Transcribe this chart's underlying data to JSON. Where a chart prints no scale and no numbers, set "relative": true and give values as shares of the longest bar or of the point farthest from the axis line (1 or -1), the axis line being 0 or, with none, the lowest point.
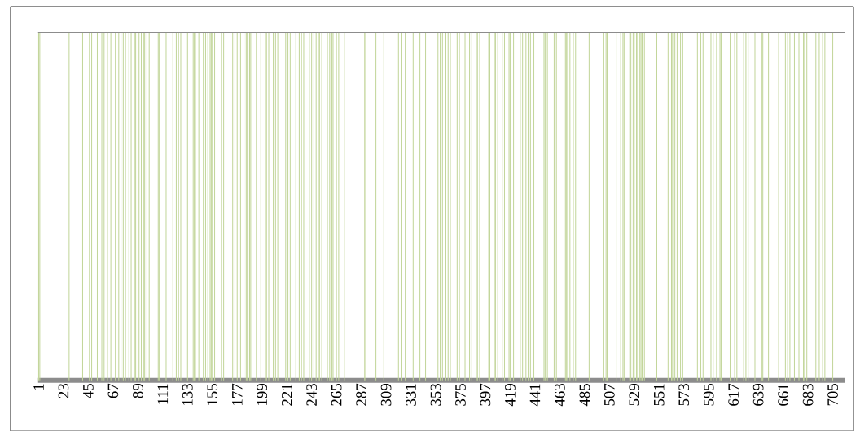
{
  "chart_data": {
    "type": "bar",
    "relative": true,
    "color": "#c3d69b",
    "ref_lines": [
      {
        "axis": "y",
        "value": 1,
        "color": "#8c8c8c"
      }
    ],
    "categories": [
      "1",
      null,
      null,
      null,
      null,
      null,
      null,
      null,
      null,
      null,
      null,
      null,
      null,
      null,
      null,
      null,
      null,
      null,
      null,
      null,
      null,
      null,
      "23",
      null,
      null,
      null,
      null,
      null,
      null,
      null,
      null,
      null,
      null,
      null,
      null,
      null,
      null,
      null,
      null,
      null,
      null,
      null,
      null,
      null,
      "45",
      null,
      null,
      null,
      null,
      null,
      null,
      null,
      null,
      null,
      null,
      null,
      null,
      null,
      null,
      null,
      null,
      null,
      null,
      null,
      null,
      null,
      "67",
      null,
      null,
      null,
      null,
      null,
      null,
      null,
      null,
      null,
      null,
      null,
      null,
      null,
      null,
      null,
      null,
      null,
      null,
      null,
      null,
      null,
      "89",
      null,
      null,
      null,
      null,
      null,
      null,
      null,
      null,
      null,
      null,
      null,
      null,
      null,
      null,
      null,
      null,
      null,
      null,
      null,
      null,
      null,
      "111",
      null,
      null,
      null,
      null,
      null,
      null,
      null,
      null,
      null,
      null,
      null,
      null,
      null,
      null,
      null,
      null,
      null,
      null,
      null,
      null,
      null,
      "133",
      null,
      null,
      null,
      null,
      null,
      null,
      null,
      null,
      null,
      null,
      null,
      null,
      null,
      null,
      null,
      null,
      null,
      null,
      null,
      null,
      null,
      "155",
      null,
      null,
      null,
      null,
      null,
      null,
      null,
      null,
      null,
      null,
      null,
      null,
      null,
      null,
      null,
      null,
      null,
      null,
      null,
      null,
      null,
      "177",
      null,
      null,
      null,
      null,
      null,
      null,
      null,
      null,
      null,
      null,
      null,
      null,
      null,
      null,
      null,
      null,
      null,
      null,
      null,
      null,
      null,
      "199",
      null,
      null,
      null,
      null,
      null,
      null,
      null,
      null,
      null,
      null,
      null,
      null,
      null,
      null,
      null,
      null,
      null,
      null,
      null,
      null,
      null,
      "221",
      null,
      null,
      null,
      null,
      null,
      null,
      null,
      null,
      null,
      null,
      null,
      null,
      null,
      null,
      null,
      null,
      null,
      null,
      null,
      null,
      null,
      "243",
      null,
      null,
      null,
      null,
      null,
      null,
      null,
      null,
      null,
      null,
      null,
      null,
      null,
      null,
      null,
      null,
      null,
      null,
      null,
      null,
      null,
      "265",
      null,
      null,
      null,
      null,
      null,
      null,
      null,
      null,
      null,
      null,
      null,
      null,
      null,
      null,
      null,
      null,
      null,
      null,
      null,
      null,
      null,
      "287",
      null,
      null,
      null,
      null,
      null,
      null,
      null,
      null,
      null,
      null,
      null,
      null,
      null,
      null,
      null,
      null,
      null,
      null,
      null,
      null,
      null,
      "309",
      null,
      null,
      null,
      null,
      null,
      null,
      null,
      null,
      null,
      null,
      null,
      null,
      null,
      null,
      null,
      null,
      null,
      null,
      null,
      null,
      null,
      "331",
      null,
      null,
      null,
      null,
      null,
      null,
      null,
      null,
      null,
      null,
      null,
      null,
      null,
      null,
      null,
      null,
      null,
      null,
      null,
      null,
      null,
      "353",
      null,
      null,
      null,
      null,
      null,
      null,
      null,
      null,
      null,
      null,
      null,
      null,
      null,
      null,
      null,
      null,
      null,
      null,
      null,
      null,
      null,
      "375",
      null,
      null,
      null,
      null,
      null,
      null,
      null,
      null,
      null,
      null,
      null,
      null,
      null,
      null,
      null,
      null,
      null,
      null,
      null,
      null,
      null,
      "397",
      null,
      null,
      null,
      null,
      null,
      null,
      null,
      null,
      null,
      null,
      null,
      null,
      null,
      null,
      null,
      null,
      null,
      null,
      null,
      null,
      null,
      "419",
      null,
      null,
      null,
      null,
      null,
      null,
      null,
      null,
      null,
      null,
      null,
      null,
      null,
      null,
      null,
      null,
      null,
      null,
      null,
      null,
      null,
      "441",
      null,
      null,
      null,
      null,
      null,
      null,
      null,
      null,
      null,
      null,
      null,
      null,
      null,
      null,
      null,
      null,
      null,
      null,
      null,
      null,
      null,
      "463",
      null,
      null,
      null,
      null,
      null,
      null,
      null,
      null,
      null,
      null,
      null,
      null,
      null,
      null,
      null,
      null,
      null,
      null,
      null,
      null,
      null,
      "485",
      null,
      null,
      null,
      null,
      null,
      null,
      null,
      null,
      null,
      null,
      null,
      null,
      null,
      null,
      null,
      null,
      null,
      null,
      null,
      null,
      null,
      "507",
      null,
      null,
      null,
      null,
      null,
      null,
      null,
      null,
      null,
      null,
      null,
      null,
      null,
      null,
      null,
      null,
      null,
      null,
      null,
      null,
      null,
      "529",
      null,
      null,
      null,
      null,
      null,
      null,
      null,
      null,
      null,
      null,
      null,
      null,
      null,
      null,
      null,
      null,
      null,
      null,
      null,
      null,
      null,
      "551",
      null,
      null,
      null,
      null,
      null,
      null,
      null,
      null,
      null,
      null,
      null,
      null,
      null,
      null,
      null,
      null,
      null,
      null,
      null,
      null,
      null,
      "573",
      null,
      null,
      null,
      null,
      null,
      null,
      null,
      null,
      null,
      null,
      null,
      null,
      null,
      null,
      null,
      null,
      null,
      null,
      null,
      null,
      null,
      "595",
      null,
      null,
      null,
      null,
      null,
      null,
      null,
      null,
      null,
      null,
      null,
      null,
      null,
      null,
      null,
      null,
      null,
      null,
      null,
      null,
      null,
      "617",
      null,
      null,
      null,
      null,
      null,
      null,
      null,
      null,
      null,
      null,
      null,
      null,
      null,
      null,
      null,
      null,
      null,
      null,
      null,
      null,
      null,
      "639",
      null,
      null,
      null,
      null,
      null,
      null,
      null,
      null,
      null,
      null,
      null,
      null,
      null,
      null,
      null,
      null,
      null,
      null,
      null,
      null,
      null,
      "661",
      null,
      null,
      null,
      null,
      null,
      null,
      null,
      null,
      null,
      null,
      null,
      null,
      null,
      null,
      null,
      null,
      null,
      null,
      null,
      null,
      null,
      "683",
      null,
      null,
      null,
      null,
      null,
      null,
      null,
      null,
      null,
      null,
      null,
      null,
      null,
      null,
      null,
      null,
      null,
      null,
      null,
      null,
      null,
      "705",
      null,
      null,
      null,
      null,
      null,
      null,
      null,
      null,
      null,
      null
    ],
    "values": [
      1,
      1,
      0,
      0,
      0,
      0,
      0,
      0,
      0,
      0,
      0,
      0,
      0,
      0,
      0,
      0,
      0,
      0,
      0,
      0,
      0,
      0,
      0,
      0,
      0,
      0,
      0,
      1,
      0,
      0,
      0,
      0,
      0,
      0,
      0,
      0,
      0,
      0,
      0,
      1,
      0,
      0,
      0,
      0,
      0,
      1,
      0,
      1,
      0,
      0,
      0,
      0,
      1,
      0,
      0,
      0,
      1,
      0,
      1,
      0,
      0,
      1,
      0,
      0,
      1,
      0,
      0,
      0,
      1,
      0,
      0,
      1,
      0,
      1,
      0,
      1,
      0,
      1,
      0,
      0,
      1,
      0,
      1,
      0,
      0,
      1,
      1,
      0,
      0,
      1,
      0,
      1,
      0,
      1,
      1,
      0,
      1,
      0,
      1,
      0,
      0,
      0,
      0,
      0,
      0,
      0,
      1,
      1,
      0,
      0,
      0,
      0,
      0,
      1,
      0,
      0,
      0,
      0,
      0,
      1,
      0,
      0,
      1,
      0,
      1,
      0,
      1,
      0,
      0,
      0,
      0,
      0,
      1,
      0,
      0,
      0,
      0,
      1,
      1,
      1,
      0,
      0,
      1,
      0,
      0,
      0,
      1,
      0,
      1,
      0,
      1,
      0,
      1,
      1,
      1,
      0,
      1,
      0,
      0,
      0,
      0,
      0,
      1,
      0,
      1,
      0,
      0,
      0,
      0,
      0,
      0,
      0,
      1,
      0,
      1,
      0,
      1,
      0,
      0,
      1,
      0,
      0,
      1,
      0,
      1,
      1,
      0,
      1,
      1,
      0,
      0,
      0,
      0,
      1,
      0,
      0,
      0,
      1,
      0,
      0,
      0,
      1,
      1,
      0,
      1,
      0,
      0,
      0,
      1,
      0,
      1,
      0,
      1,
      0,
      0,
      0,
      0,
      0,
      0,
      1,
      0,
      1,
      0,
      1,
      0,
      0,
      0,
      0,
      1,
      0,
      0,
      1,
      0,
      1,
      0,
      1,
      0,
      0,
      0,
      0,
      1,
      0,
      1,
      0,
      1,
      0,
      1,
      0,
      1,
      1,
      0,
      1,
      0,
      0,
      0,
      0,
      1,
      0,
      1,
      0,
      1,
      1,
      0,
      0,
      1,
      0,
      1,
      0,
      0,
      0,
      0,
      1,
      0,
      0,
      0,
      0,
      0,
      0,
      0,
      0,
      0,
      0,
      0,
      0,
      0,
      0,
      0,
      0,
      0,
      1,
      1,
      0,
      0,
      0,
      0,
      0,
      0,
      0,
      0,
      1,
      0,
      0,
      0,
      0,
      0,
      0,
      1,
      0,
      0,
      0,
      0,
      0,
      0,
      0,
      0,
      0,
      0,
      0,
      0,
      1,
      0,
      0,
      1,
      0,
      0,
      1,
      0,
      0,
      0,
      0,
      0,
      0,
      1,
      0,
      0,
      0,
      0,
      0,
      1,
      0,
      0,
      0,
      0,
      1,
      0,
      0,
      0,
      0,
      0,
      0,
      0,
      0,
      0,
      0,
      1,
      0,
      1,
      0,
      1,
      0,
      0,
      1,
      0,
      1,
      0,
      1,
      0,
      0,
      0,
      0,
      0,
      1,
      0,
      1,
      0,
      0,
      0,
      0,
      1,
      0,
      0,
      0,
      1,
      0,
      1,
      0,
      0,
      0,
      1,
      1,
      0,
      1,
      0,
      0,
      0,
      0,
      0,
      0,
      0,
      1,
      1,
      0,
      0,
      0,
      1,
      1,
      0,
      1,
      0,
      0,
      0,
      1,
      0,
      1,
      0,
      0,
      0,
      1,
      1,
      0,
      0,
      1,
      0,
      0,
      0,
      0,
      0,
      1,
      0,
      1,
      0,
      0,
      1,
      0,
      1,
      0,
      1,
      0,
      0,
      1,
      0,
      0,
      0,
      0,
      0,
      0,
      0,
      0,
      1,
      1,
      0,
      1,
      0,
      0,
      0,
      0,
      0,
      1,
      0,
      1,
      0,
      0,
      0,
      0,
      0,
      0,
      0,
      1,
      1,
      1,
      0,
      1,
      0,
      0,
      1,
      0,
      1,
      0,
      0,
      0,
      0,
      0,
      0,
      0,
      0,
      0,
      0,
      0,
      1,
      0,
      0,
      0,
      0,
      0,
      0,
      0,
      0,
      0,
      0,
      0,
      0,
      1,
      0,
      1,
      1,
      0,
      0,
      0,
      0,
      0,
      0,
      0,
      1,
      0,
      0,
      0,
      1,
      0,
      1,
      1,
      0,
      0,
      0,
      0,
      1,
      1,
      0,
      1,
      1,
      0,
      1,
      1,
      0,
      1,
      1,
      1,
      0,
      1,
      0,
      0,
      0,
      0,
      0,
      0,
      0,
      0,
      0,
      0,
      1,
      0,
      0,
      0,
      0,
      0,
      0,
      0,
      0,
      0,
      1,
      0,
      0,
      1,
      1,
      0,
      1,
      0,
      1,
      0,
      0,
      1,
      0,
      1,
      0,
      0,
      0,
      0,
      0,
      0,
      0,
      0,
      0,
      0,
      0,
      0,
      1,
      0,
      0,
      1,
      0,
      1,
      0,
      0,
      0,
      0,
      0,
      0,
      1,
      0,
      1,
      0,
      0,
      1,
      0,
      0,
      1,
      1,
      0,
      0,
      0,
      0,
      0,
      0,
      0,
      1,
      0,
      0,
      0,
      1,
      0,
      1,
      0,
      0,
      0,
      0,
      0,
      1,
      0,
      1,
      0,
      1,
      0,
      0,
      0,
      0,
      0,
      1,
      0,
      0,
      0,
      0,
      0,
      1,
      1,
      0,
      0,
      0,
      0,
      1,
      0,
      0,
      0,
      0,
      0,
      0,
      0,
      0,
      1,
      0,
      0,
      0,
      0,
      0,
      1,
      0,
      1,
      0,
      1,
      0,
      0,
      0,
      1,
      0,
      0,
      0,
      1,
      0,
      0,
      0,
      1,
      1,
      0,
      1,
      0,
      0,
      0,
      0,
      0,
      0,
      0,
      1,
      0,
      0,
      1,
      0,
      0,
      1,
      0,
      1,
      0,
      0,
      0,
      0,
      0,
      0,
      1,
      0,
      0,
      0,
      0,
      0,
      0,
      0,
      0,
      0,
      0
    ]
  }
}
